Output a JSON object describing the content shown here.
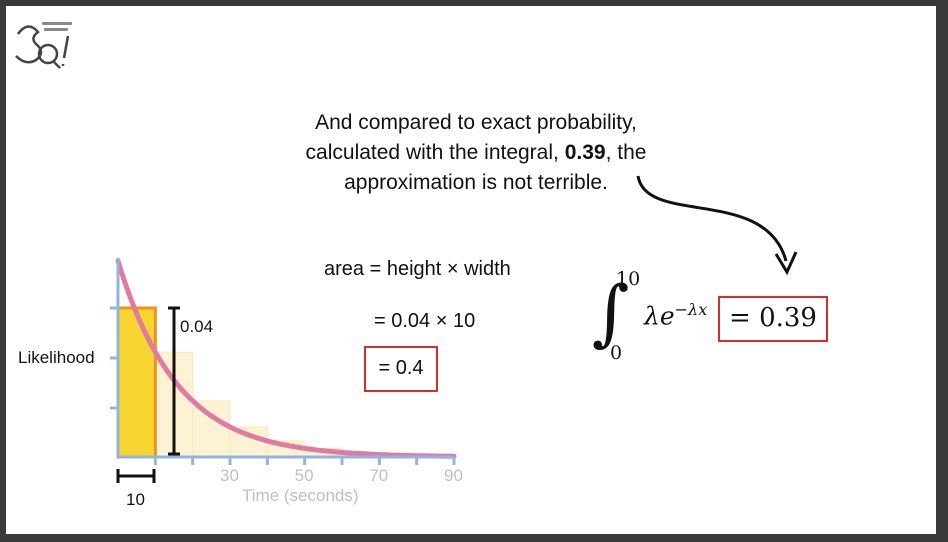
{
  "caption": {
    "line1": "And compared to exact probability,",
    "line2_pre": "calculated with the integral, ",
    "line2_bold": "0.39",
    "line2_post": ", the",
    "line3": "approximation is not terrible."
  },
  "equations": {
    "line1": "area = height × width",
    "line2": "= 0.04 × 10",
    "line3": "= 0.4"
  },
  "integral": {
    "upper": "10",
    "lower": "0",
    "integrand": "λe",
    "exponent": "−λx",
    "result": "= 0.39"
  },
  "colors": {
    "highlight_bar": "#f7d631",
    "highlight_border": "#f0901e",
    "faded_bar": "#fdf3d4",
    "curve": "#e07aa0",
    "axis": "#8fb6e0",
    "box": "#d4302a"
  },
  "chart_data": {
    "type": "bar",
    "ylabel": "Likelihood",
    "xlabel": "Time (seconds)",
    "tick_labels": [
      "30",
      "50",
      "70",
      "90"
    ],
    "tick_values": [
      30,
      50,
      70,
      90
    ],
    "xlim": [
      0,
      90
    ],
    "bin_width": 10,
    "width_label": "10",
    "height_label": "0.04",
    "bars": [
      {
        "x0": 0,
        "x1": 10,
        "highlighted": true
      },
      {
        "x0": 10,
        "x1": 20,
        "highlighted": false
      },
      {
        "x0": 20,
        "x1": 30,
        "highlighted": false
      },
      {
        "x0": 30,
        "x1": 40,
        "highlighted": false
      },
      {
        "x0": 40,
        "x1": 50,
        "highlighted": false
      },
      {
        "x0": 50,
        "x1": 60,
        "highlighted": false
      },
      {
        "x0": 60,
        "x1": 70,
        "highlighted": false
      }
    ],
    "curve": "exponential decay"
  }
}
